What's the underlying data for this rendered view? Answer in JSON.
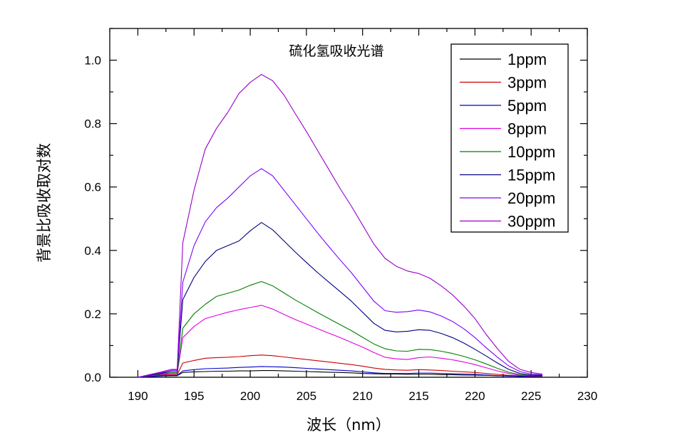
{
  "chart_data": {
    "type": "line",
    "title": "硫化氢吸收光谱",
    "xlabel": "波长（nm）",
    "ylabel": "背景比吸收取对数",
    "xlim": [
      187.5,
      230
    ],
    "ylim": [
      0.0,
      1.1
    ],
    "xticks": [
      "190",
      "195",
      "200",
      "205",
      "210",
      "215",
      "220",
      "225",
      "230"
    ],
    "yticks": [
      "0.0",
      "0.2",
      "0.4",
      "0.6",
      "0.8",
      "1.0"
    ],
    "legend_position": "top-right",
    "grid": false,
    "x": [
      190,
      191,
      192,
      193,
      193.5,
      194,
      195,
      196,
      197,
      198,
      199,
      200,
      201,
      202,
      203,
      204,
      205,
      206,
      207,
      208,
      209,
      210,
      211,
      212,
      213,
      214,
      215,
      216,
      217,
      218,
      219,
      220,
      221,
      222,
      223,
      224,
      225,
      226
    ],
    "series": [
      {
        "name": "1ppm",
        "color": "#000000",
        "values": [
          0.0,
          0.002,
          0.004,
          0.005,
          0.005,
          0.015,
          0.017,
          0.018,
          0.019,
          0.019,
          0.02,
          0.02,
          0.021,
          0.021,
          0.02,
          0.019,
          0.018,
          0.017,
          0.016,
          0.015,
          0.014,
          0.012,
          0.011,
          0.01,
          0.01,
          0.009,
          0.009,
          0.009,
          0.008,
          0.008,
          0.007,
          0.007,
          0.006,
          0.005,
          0.004,
          0.003,
          0.003,
          0.003
        ]
      },
      {
        "name": "3ppm",
        "color": "#cc0000",
        "values": [
          0.0,
          0.003,
          0.006,
          0.008,
          0.008,
          0.045,
          0.053,
          0.06,
          0.062,
          0.063,
          0.065,
          0.068,
          0.07,
          0.068,
          0.064,
          0.06,
          0.056,
          0.052,
          0.048,
          0.044,
          0.04,
          0.035,
          0.029,
          0.025,
          0.023,
          0.022,
          0.024,
          0.023,
          0.021,
          0.019,
          0.017,
          0.015,
          0.012,
          0.009,
          0.006,
          0.004,
          0.003,
          0.003
        ]
      },
      {
        "name": "5ppm",
        "color": "#0000cc",
        "values": [
          0.0,
          0.002,
          0.004,
          0.006,
          0.006,
          0.02,
          0.024,
          0.027,
          0.028,
          0.029,
          0.031,
          0.032,
          0.034,
          0.033,
          0.032,
          0.03,
          0.028,
          0.026,
          0.024,
          0.022,
          0.02,
          0.017,
          0.014,
          0.012,
          0.012,
          0.012,
          0.013,
          0.013,
          0.012,
          0.011,
          0.01,
          0.009,
          0.007,
          0.005,
          0.004,
          0.003,
          0.003,
          0.003
        ]
      },
      {
        "name": "8ppm",
        "color": "#e000e0",
        "values": [
          0.0,
          0.004,
          0.008,
          0.012,
          0.012,
          0.125,
          0.16,
          0.185,
          0.195,
          0.205,
          0.213,
          0.22,
          0.227,
          0.215,
          0.198,
          0.182,
          0.168,
          0.153,
          0.139,
          0.125,
          0.11,
          0.095,
          0.078,
          0.063,
          0.058,
          0.056,
          0.062,
          0.064,
          0.06,
          0.055,
          0.048,
          0.04,
          0.03,
          0.02,
          0.012,
          0.006,
          0.004,
          0.004
        ]
      },
      {
        "name": "10ppm",
        "color": "#007f00",
        "values": [
          0.0,
          0.005,
          0.01,
          0.014,
          0.014,
          0.155,
          0.2,
          0.23,
          0.255,
          0.265,
          0.275,
          0.29,
          0.302,
          0.288,
          0.266,
          0.244,
          0.224,
          0.204,
          0.185,
          0.166,
          0.147,
          0.126,
          0.105,
          0.09,
          0.083,
          0.082,
          0.088,
          0.087,
          0.082,
          0.075,
          0.066,
          0.055,
          0.042,
          0.028,
          0.016,
          0.008,
          0.005,
          0.005
        ]
      },
      {
        "name": "15ppm",
        "color": "#000080",
        "values": [
          0.0,
          0.006,
          0.012,
          0.018,
          0.018,
          0.245,
          0.315,
          0.365,
          0.4,
          0.415,
          0.43,
          0.462,
          0.488,
          0.465,
          0.43,
          0.395,
          0.362,
          0.33,
          0.3,
          0.27,
          0.24,
          0.205,
          0.17,
          0.148,
          0.143,
          0.145,
          0.15,
          0.148,
          0.138,
          0.125,
          0.108,
          0.088,
          0.067,
          0.045,
          0.025,
          0.012,
          0.007,
          0.006
        ]
      },
      {
        "name": "20ppm",
        "color": "#7f00ff",
        "values": [
          0.0,
          0.007,
          0.014,
          0.022,
          0.022,
          0.3,
          0.415,
          0.49,
          0.535,
          0.565,
          0.6,
          0.635,
          0.658,
          0.635,
          0.59,
          0.545,
          0.5,
          0.455,
          0.412,
          0.37,
          0.33,
          0.285,
          0.24,
          0.21,
          0.205,
          0.207,
          0.212,
          0.206,
          0.193,
          0.176,
          0.153,
          0.125,
          0.093,
          0.063,
          0.036,
          0.018,
          0.01,
          0.008
        ]
      },
      {
        "name": "30ppm",
        "color": "#9900cc",
        "values": [
          0.0,
          0.008,
          0.016,
          0.025,
          0.025,
          0.425,
          0.59,
          0.72,
          0.785,
          0.835,
          0.895,
          0.93,
          0.955,
          0.935,
          0.89,
          0.832,
          0.775,
          0.715,
          0.655,
          0.595,
          0.54,
          0.48,
          0.42,
          0.375,
          0.35,
          0.335,
          0.327,
          0.312,
          0.288,
          0.26,
          0.225,
          0.185,
          0.135,
          0.09,
          0.05,
          0.025,
          0.015,
          0.01
        ]
      }
    ]
  }
}
